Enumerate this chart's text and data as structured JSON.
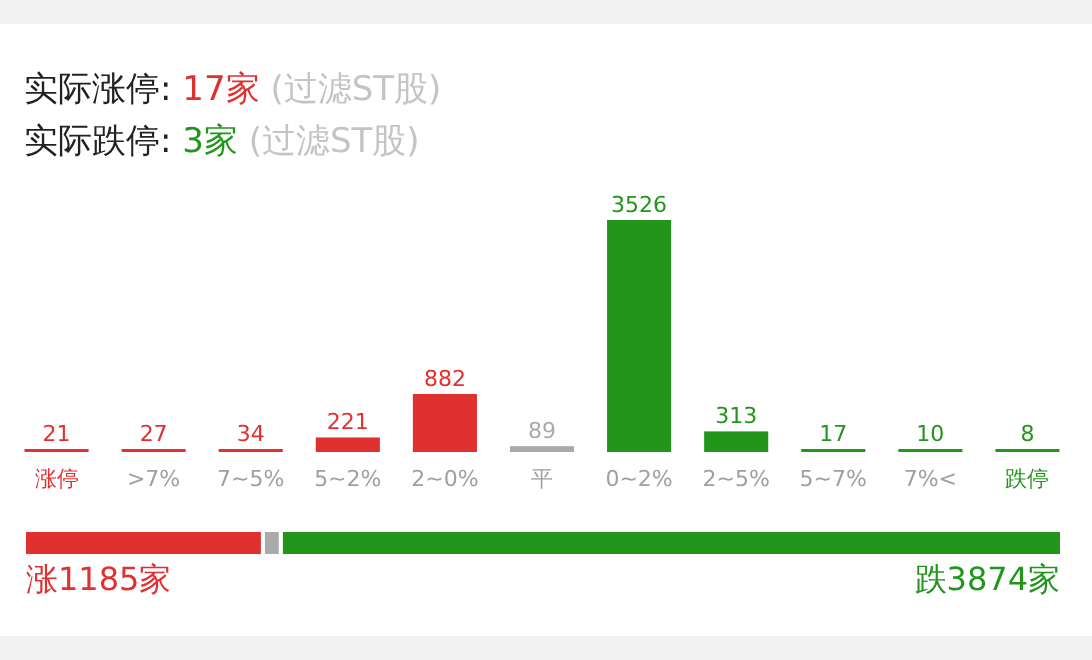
{
  "chart_data": [
    {
      "type": "bar",
      "title": "实际涨停: 17家 (过滤ST股)",
      "subtitle": "实际跌停: 3家 (过滤ST股)",
      "categories": [
        "涨停",
        ">7%",
        "7~5%",
        "5~2%",
        "2~0%",
        "平",
        "0~2%",
        "2~5%",
        "5~7%",
        "7%<",
        "跌停"
      ],
      "values": [
        21,
        27,
        34,
        221,
        882,
        89,
        3526,
        313,
        17,
        10,
        8
      ],
      "colors": [
        "#e0302f",
        "#e0302f",
        "#e0302f",
        "#e0302f",
        "#e0302f",
        "#aaaaaa",
        "#22961b",
        "#22961b",
        "#22961b",
        "#22961b",
        "#22961b"
      ],
      "data_labels": true
    },
    {
      "type": "bar",
      "orientation": "horizontal",
      "stacked": true,
      "categories": [
        null
      ],
      "series": [
        {
          "color": "#e0302f",
          "values": [
            1185
          ],
          "value_labels": [
            "涨1185家"
          ]
        },
        {
          "color": "#aaaaaa",
          "values": [
            89
          ],
          "value_labels": [
            null
          ]
        },
        {
          "color": "#22961b",
          "values": [
            3874
          ],
          "value_labels": [
            "跌3874家"
          ]
        }
      ]
    }
  ]
}
